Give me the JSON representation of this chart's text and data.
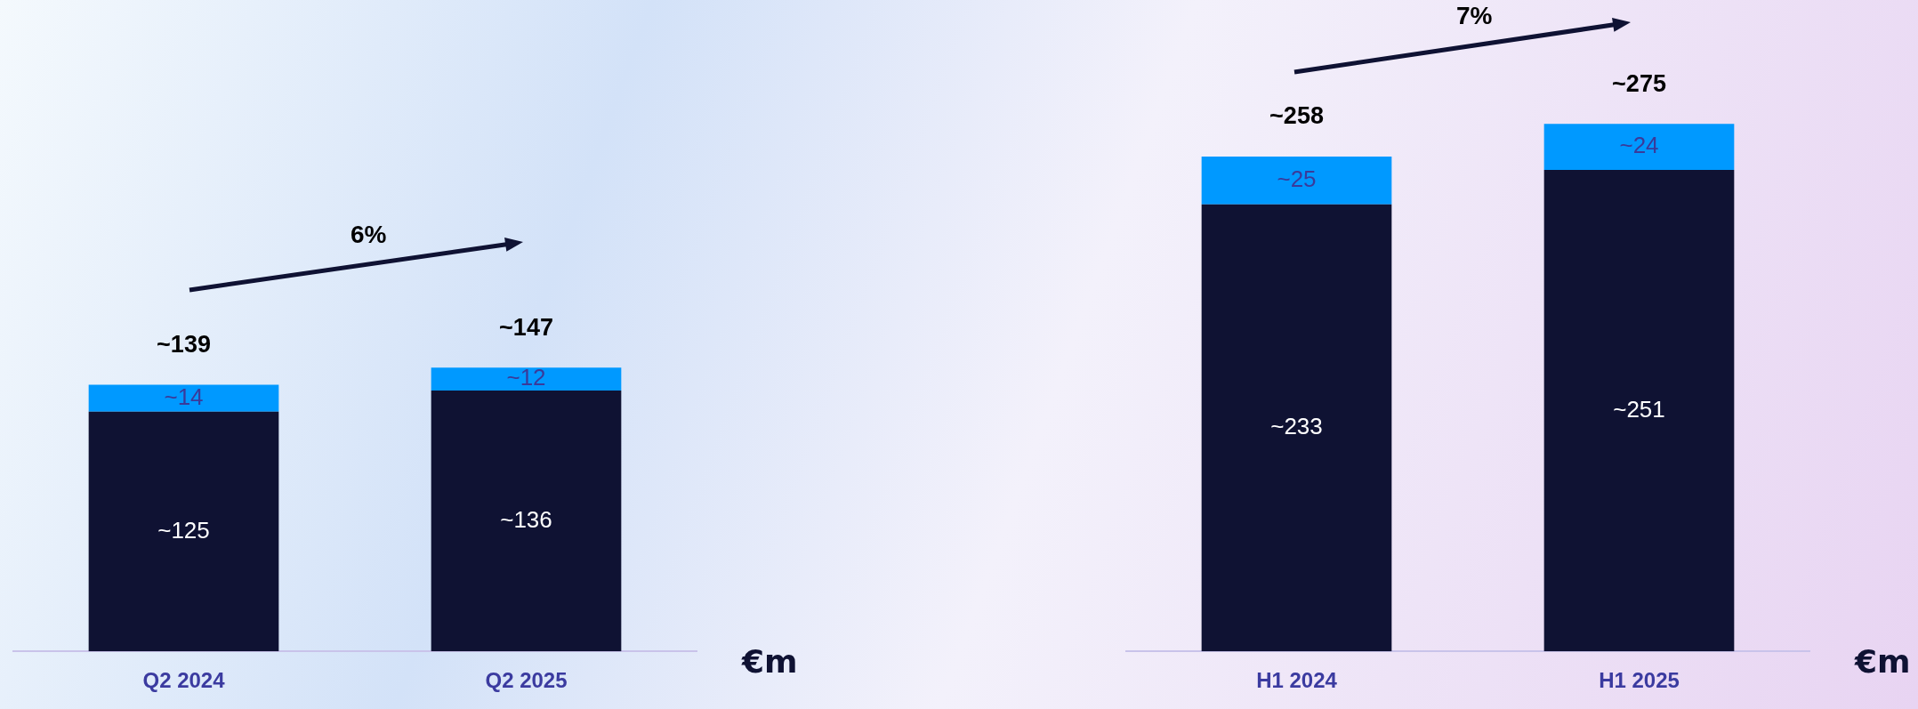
{
  "chart_data": [
    {
      "type": "bar",
      "stacked": true,
      "categories": [
        "Q2 2024",
        "Q2 2025"
      ],
      "ylabel": "€m",
      "annotations": [
        "6%"
      ],
      "totals": [
        "~139",
        "~147"
      ],
      "legend": false,
      "series": [
        {
          "color": "#0f1233",
          "values": [
            125,
            136
          ],
          "value_labels": [
            "~125",
            "~136"
          ]
        },
        {
          "color": "#0099ff",
          "values": [
            14,
            12
          ],
          "value_labels": [
            "~14",
            "~12"
          ]
        }
      ]
    },
    {
      "type": "bar",
      "stacked": true,
      "categories": [
        "H1 2024",
        "H1 2025"
      ],
      "ylabel": "€m",
      "annotations": [
        "7%"
      ],
      "totals": [
        "~258",
        "~275"
      ],
      "legend": false,
      "series": [
        {
          "color": "#0f1233",
          "values": [
            233,
            251
          ],
          "value_labels": [
            "~233",
            "~251"
          ]
        },
        {
          "color": "#0099ff",
          "values": [
            25,
            24
          ],
          "value_labels": [
            "~25",
            "~24"
          ]
        }
      ]
    }
  ]
}
